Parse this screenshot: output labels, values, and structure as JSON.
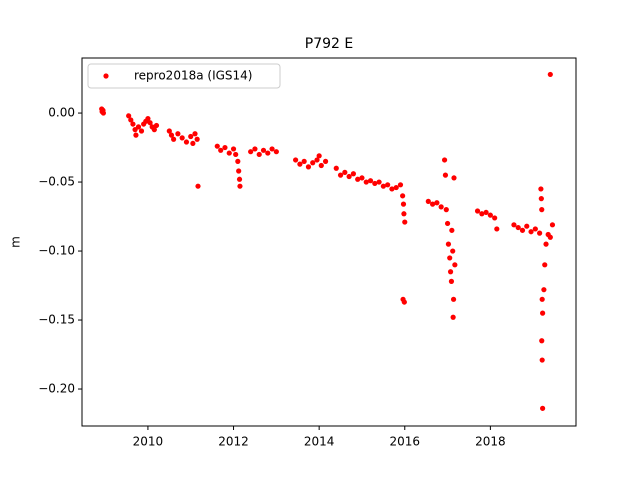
{
  "chart_data": {
    "type": "scatter",
    "title": "P792 E",
    "y_label": "m",
    "xlim": [
      2008.46,
      2020.0
    ],
    "xticks": [
      2010,
      2012,
      2014,
      2016,
      2018
    ],
    "ylim": [
      -0.2268,
      0.0399
    ],
    "yticks": [
      {
        "value": 0,
        "label": "0.00"
      },
      {
        "value": -0.05,
        "label": "−0.05"
      },
      {
        "value": -0.1,
        "label": "−0.10"
      },
      {
        "value": -0.15,
        "label": "−0.15"
      },
      {
        "value": -0.2,
        "label": "−0.20"
      }
    ],
    "legend": "upper left",
    "grid": false,
    "series": [
      {
        "name": "repro2018a (IGS14)",
        "color": "#ff0000",
        "x": [
          2008.92,
          2008.93,
          2008.95,
          2008.96,
          2009.55,
          2009.6,
          2009.65,
          2009.7,
          2009.72,
          2009.78,
          2009.85,
          2009.9,
          2009.95,
          2010.0,
          2010.05,
          2010.1,
          2010.15,
          2010.2,
          2010.5,
          2010.55,
          2010.6,
          2010.7,
          2010.8,
          2010.9,
          2011.0,
          2011.05,
          2011.1,
          2011.15,
          2011.17,
          2011.62,
          2011.7,
          2011.8,
          2011.9,
          2012.0,
          2012.05,
          2012.1,
          2012.12,
          2012.14,
          2012.15,
          2012.4,
          2012.5,
          2012.6,
          2012.7,
          2012.8,
          2012.9,
          2013.0,
          2013.45,
          2013.55,
          2013.65,
          2013.75,
          2013.85,
          2013.95,
          2014.0,
          2014.05,
          2014.15,
          2014.4,
          2014.5,
          2014.6,
          2014.7,
          2014.8,
          2014.9,
          2015.0,
          2015.1,
          2015.2,
          2015.3,
          2015.4,
          2015.5,
          2015.6,
          2015.7,
          2015.8,
          2015.9,
          2015.95,
          2015.97,
          2015.98,
          2016.0,
          2015.96,
          2015.99,
          2016.55,
          2016.65,
          2016.75,
          2016.85,
          2016.93,
          2016.95,
          2016.97,
          2017.0,
          2017.02,
          2017.05,
          2017.07,
          2017.09,
          2017.1,
          2017.12,
          2017.13,
          2017.14,
          2017.15,
          2017.17,
          2017.7,
          2017.8,
          2017.9,
          2018.0,
          2018.1,
          2018.15,
          2018.55,
          2018.65,
          2018.75,
          2018.85,
          2018.95,
          2019.05,
          2019.15,
          2019.18,
          2019.19,
          2019.2,
          2019.21,
          2019.22,
          2019.2,
          2019.21,
          2019.22,
          2019.25,
          2019.27,
          2019.3,
          2019.35,
          2019.4,
          2019.45,
          2019.4
        ],
        "values": [
          0.003,
          0.001,
          0.002,
          0.0,
          -0.002,
          -0.005,
          -0.008,
          -0.012,
          -0.016,
          -0.01,
          -0.013,
          -0.008,
          -0.006,
          -0.004,
          -0.007,
          -0.01,
          -0.012,
          -0.009,
          -0.013,
          -0.016,
          -0.019,
          -0.015,
          -0.018,
          -0.021,
          -0.017,
          -0.022,
          -0.015,
          -0.019,
          -0.053,
          -0.024,
          -0.027,
          -0.025,
          -0.029,
          -0.026,
          -0.03,
          -0.035,
          -0.042,
          -0.048,
          -0.053,
          -0.028,
          -0.026,
          -0.03,
          -0.027,
          -0.029,
          -0.026,
          -0.028,
          -0.034,
          -0.037,
          -0.035,
          -0.039,
          -0.036,
          -0.034,
          -0.031,
          -0.038,
          -0.035,
          -0.04,
          -0.045,
          -0.043,
          -0.046,
          -0.044,
          -0.048,
          -0.047,
          -0.05,
          -0.049,
          -0.051,
          -0.05,
          -0.053,
          -0.052,
          -0.055,
          -0.054,
          -0.052,
          -0.06,
          -0.066,
          -0.073,
          -0.079,
          -0.135,
          -0.137,
          -0.064,
          -0.066,
          -0.065,
          -0.068,
          -0.034,
          -0.045,
          -0.07,
          -0.08,
          -0.095,
          -0.105,
          -0.115,
          -0.122,
          -0.085,
          -0.1,
          -0.148,
          -0.135,
          -0.047,
          -0.11,
          -0.071,
          -0.073,
          -0.072,
          -0.074,
          -0.076,
          -0.084,
          -0.081,
          -0.083,
          -0.085,
          -0.082,
          -0.086,
          -0.084,
          -0.087,
          -0.055,
          -0.062,
          -0.07,
          -0.135,
          -0.145,
          -0.165,
          -0.179,
          -0.214,
          -0.128,
          -0.11,
          -0.095,
          -0.088,
          -0.09,
          -0.081,
          0.028
        ]
      }
    ]
  }
}
